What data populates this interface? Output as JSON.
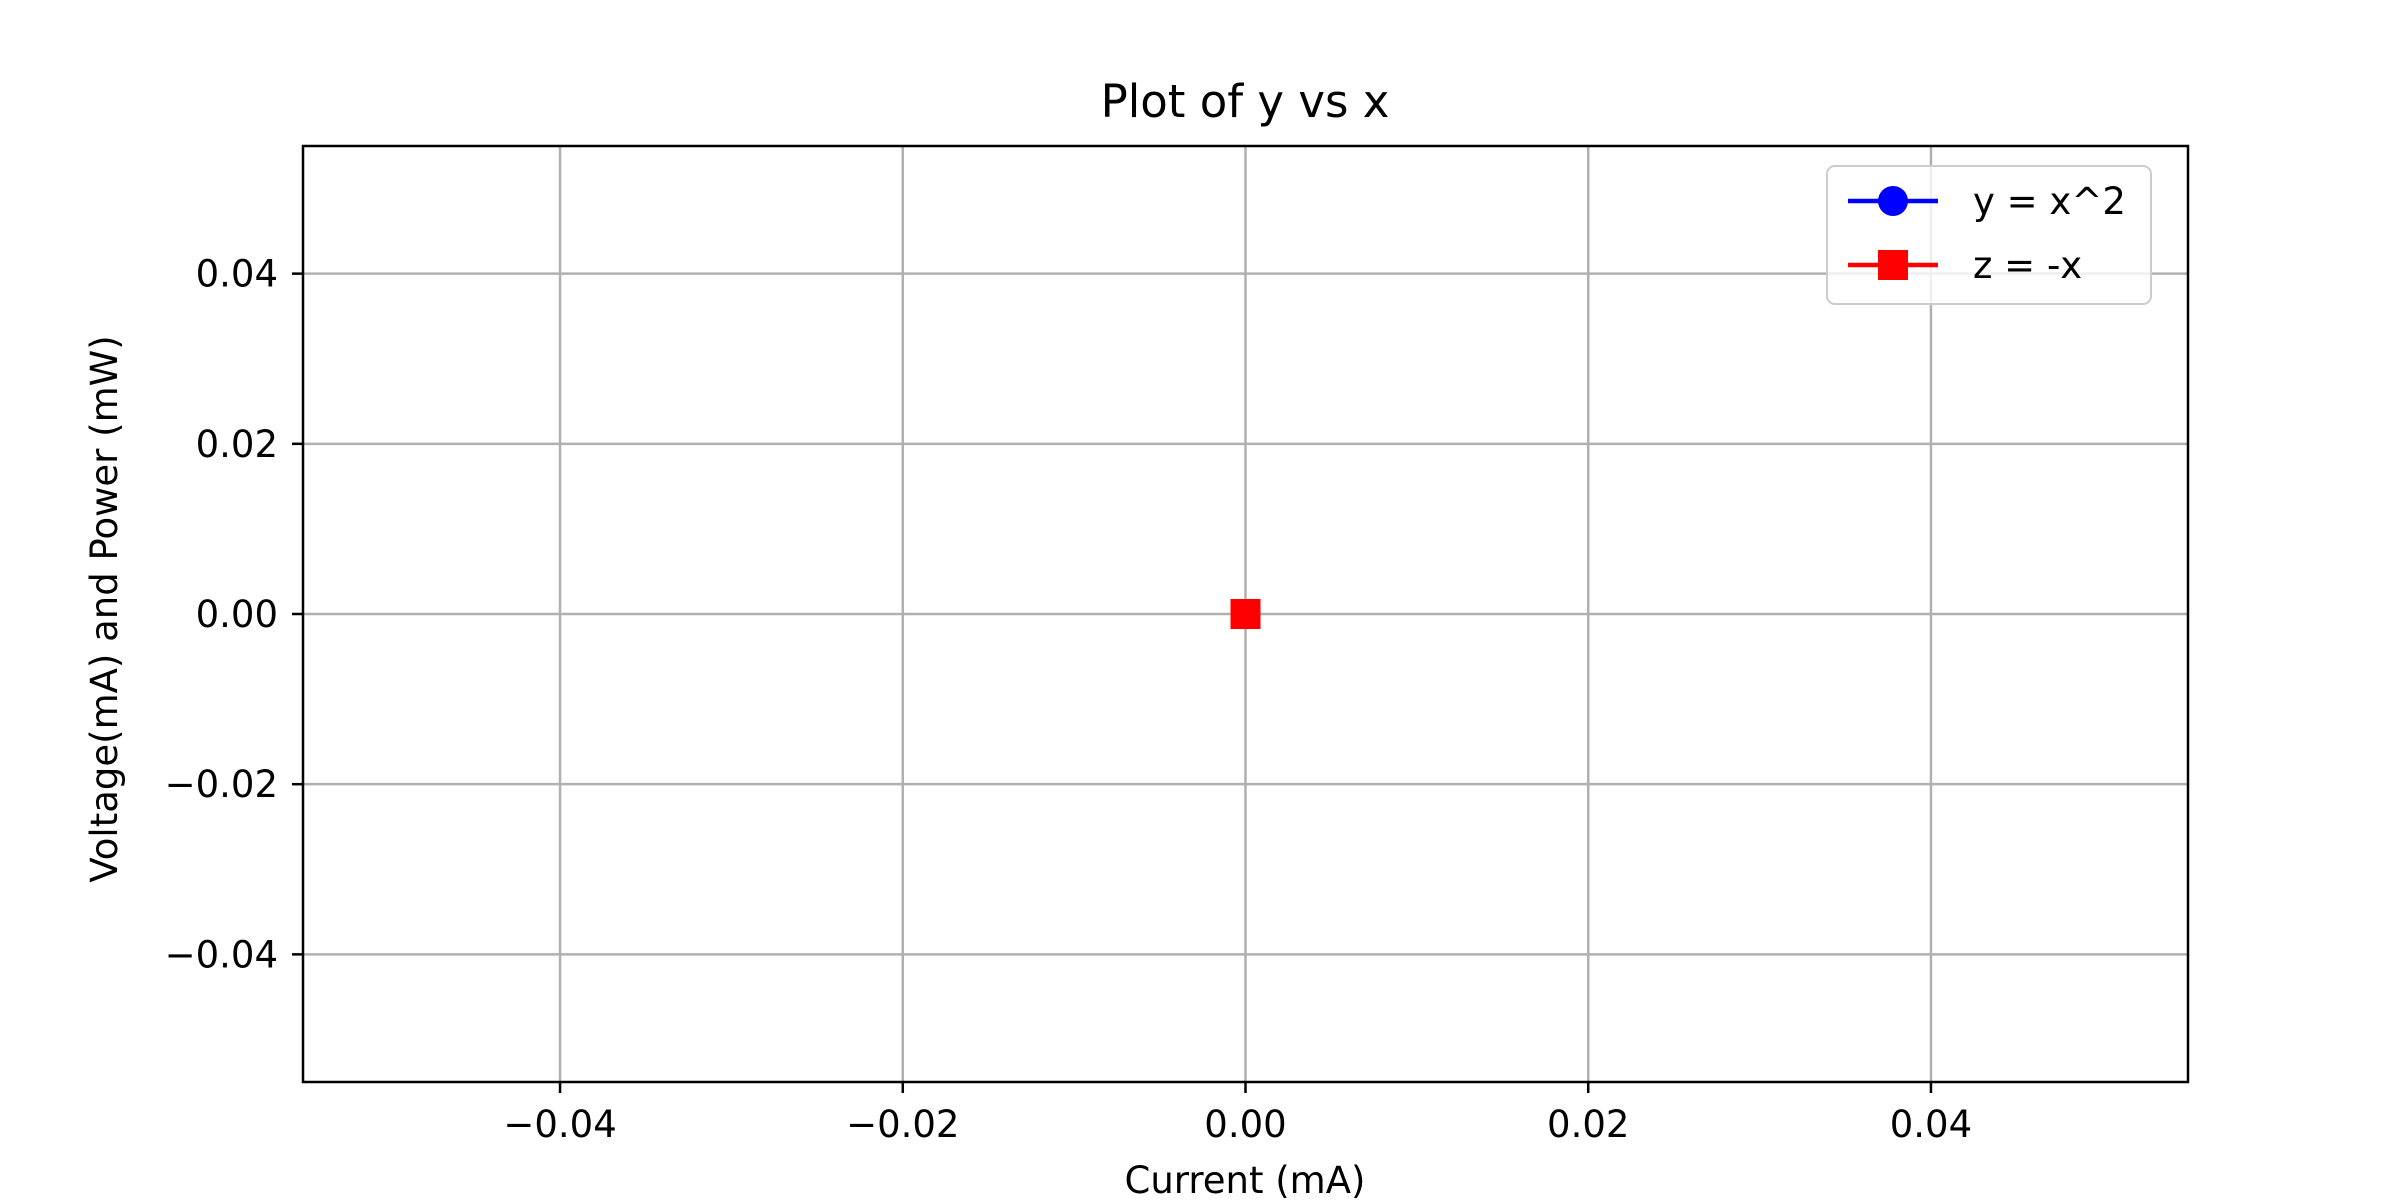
{
  "chart_data": {
    "type": "line",
    "title": "Plot of y vs x",
    "xlabel": "Current (mA)",
    "ylabel": "Voltage(mA) and Power (mW)",
    "xlim": [
      -0.055,
      0.055
    ],
    "ylim": [
      -0.055,
      0.055
    ],
    "x_ticks": [
      -0.04,
      -0.02,
      0.0,
      0.02,
      0.04
    ],
    "x_tick_labels": [
      "−0.04",
      "−0.02",
      "0.00",
      "0.02",
      "0.04"
    ],
    "y_ticks": [
      -0.04,
      -0.02,
      0.0,
      0.02,
      0.04
    ],
    "y_tick_labels": [
      "−0.04",
      "−0.02",
      "0.00",
      "0.02",
      "0.04"
    ],
    "grid": true,
    "legend_position": "top-right",
    "series": [
      {
        "name": "y = x^2",
        "color": "#0000ff",
        "marker": "circle",
        "x": [
          0
        ],
        "y": [
          0
        ]
      },
      {
        "name": "z = -x",
        "color": "#ff0000",
        "marker": "square",
        "x": [
          0
        ],
        "y": [
          0
        ]
      }
    ]
  }
}
